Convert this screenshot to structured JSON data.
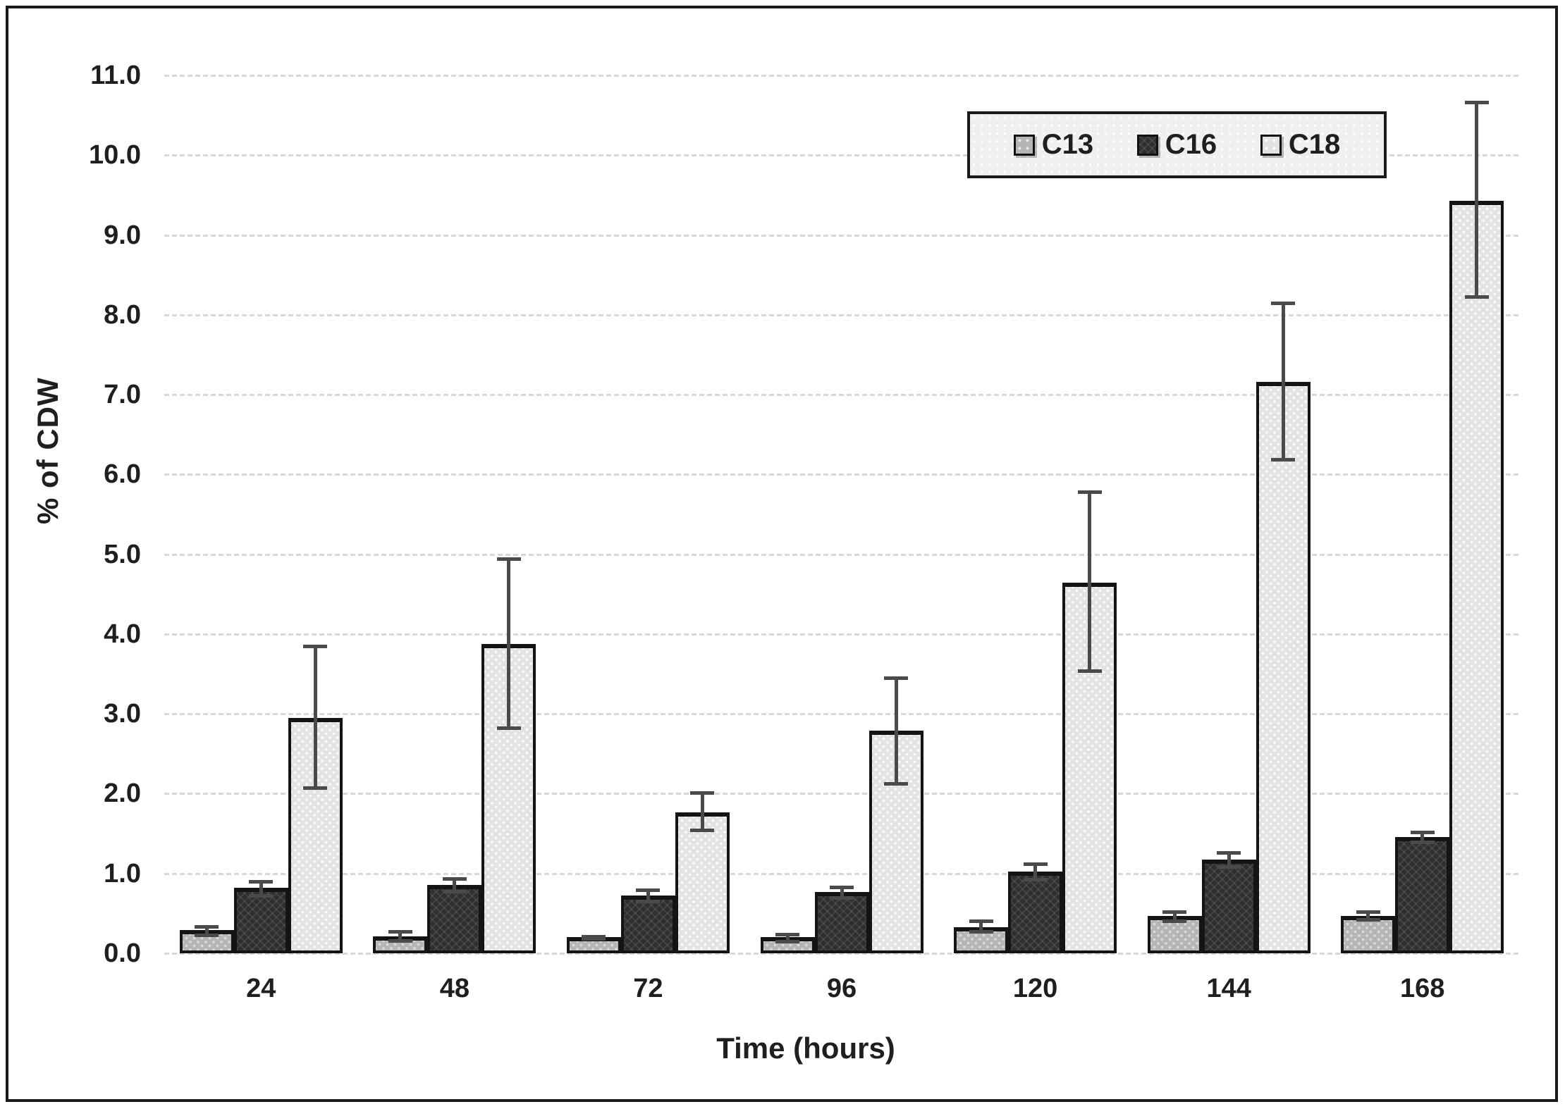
{
  "chart_data": {
    "type": "bar",
    "title": "",
    "xlabel": "Time (hours)",
    "ylabel": "% of CDW",
    "categories": [
      "24",
      "48",
      "72",
      "96",
      "120",
      "144",
      "168"
    ],
    "y_tick_labels": [
      "11.0",
      "10.0",
      "9.0",
      "8.0",
      "7.0",
      "6.0",
      "5.0",
      "4.0",
      "3.0",
      "2.0",
      "1.0",
      "0.0"
    ],
    "ylim": [
      0,
      11
    ],
    "y_step": 1.0,
    "grid": "horizontal-dotted",
    "legend_position": "top-right-inside",
    "series": [
      {
        "name": "C13",
        "fill": "#b5b5b5",
        "pattern": "dots",
        "pattern_color": "rgba(255,255,255,0.5)",
        "values": [
          0.29,
          0.21,
          0.2,
          0.2,
          0.33,
          0.47,
          0.47
        ],
        "error_up": [
          0.06,
          0.08,
          0.03,
          0.06,
          0.09,
          0.07,
          0.07
        ],
        "error_down": [
          0.09,
          0.08,
          0.04,
          0.08,
          0.08,
          0.09,
          0.07
        ]
      },
      {
        "name": "C16",
        "fill": "#2f2f2f",
        "pattern": "crosshatch",
        "pattern_color": "rgba(255,255,255,0.09)",
        "values": [
          0.82,
          0.86,
          0.72,
          0.77,
          1.02,
          1.17,
          1.46
        ],
        "error_up": [
          0.1,
          0.09,
          0.09,
          0.08,
          0.12,
          0.11,
          0.08
        ],
        "error_down": [
          0.12,
          0.11,
          0.09,
          0.1,
          0.12,
          0.11,
          0.09
        ]
      },
      {
        "name": "C18",
        "fill": "#e3e3e3",
        "pattern": "dots",
        "pattern_color": "rgba(255,255,255,0.9)",
        "values": [
          2.95,
          3.88,
          1.77,
          2.79,
          4.64,
          7.16,
          9.43
        ],
        "error_up": [
          0.92,
          1.08,
          0.26,
          0.68,
          1.16,
          1.01,
          1.25
        ],
        "error_down": [
          0.9,
          1.08,
          0.25,
          0.69,
          1.13,
          1.0,
          1.23
        ]
      }
    ],
    "colors": {
      "error_bar": "#4a4a4a",
      "bar_border": "#141414",
      "gridline": "#d8d8d8",
      "text": "#1f1f1f",
      "frame_border": "#1a1a1a",
      "legend_bg": "#efefef",
      "background": "#ffffff"
    }
  }
}
